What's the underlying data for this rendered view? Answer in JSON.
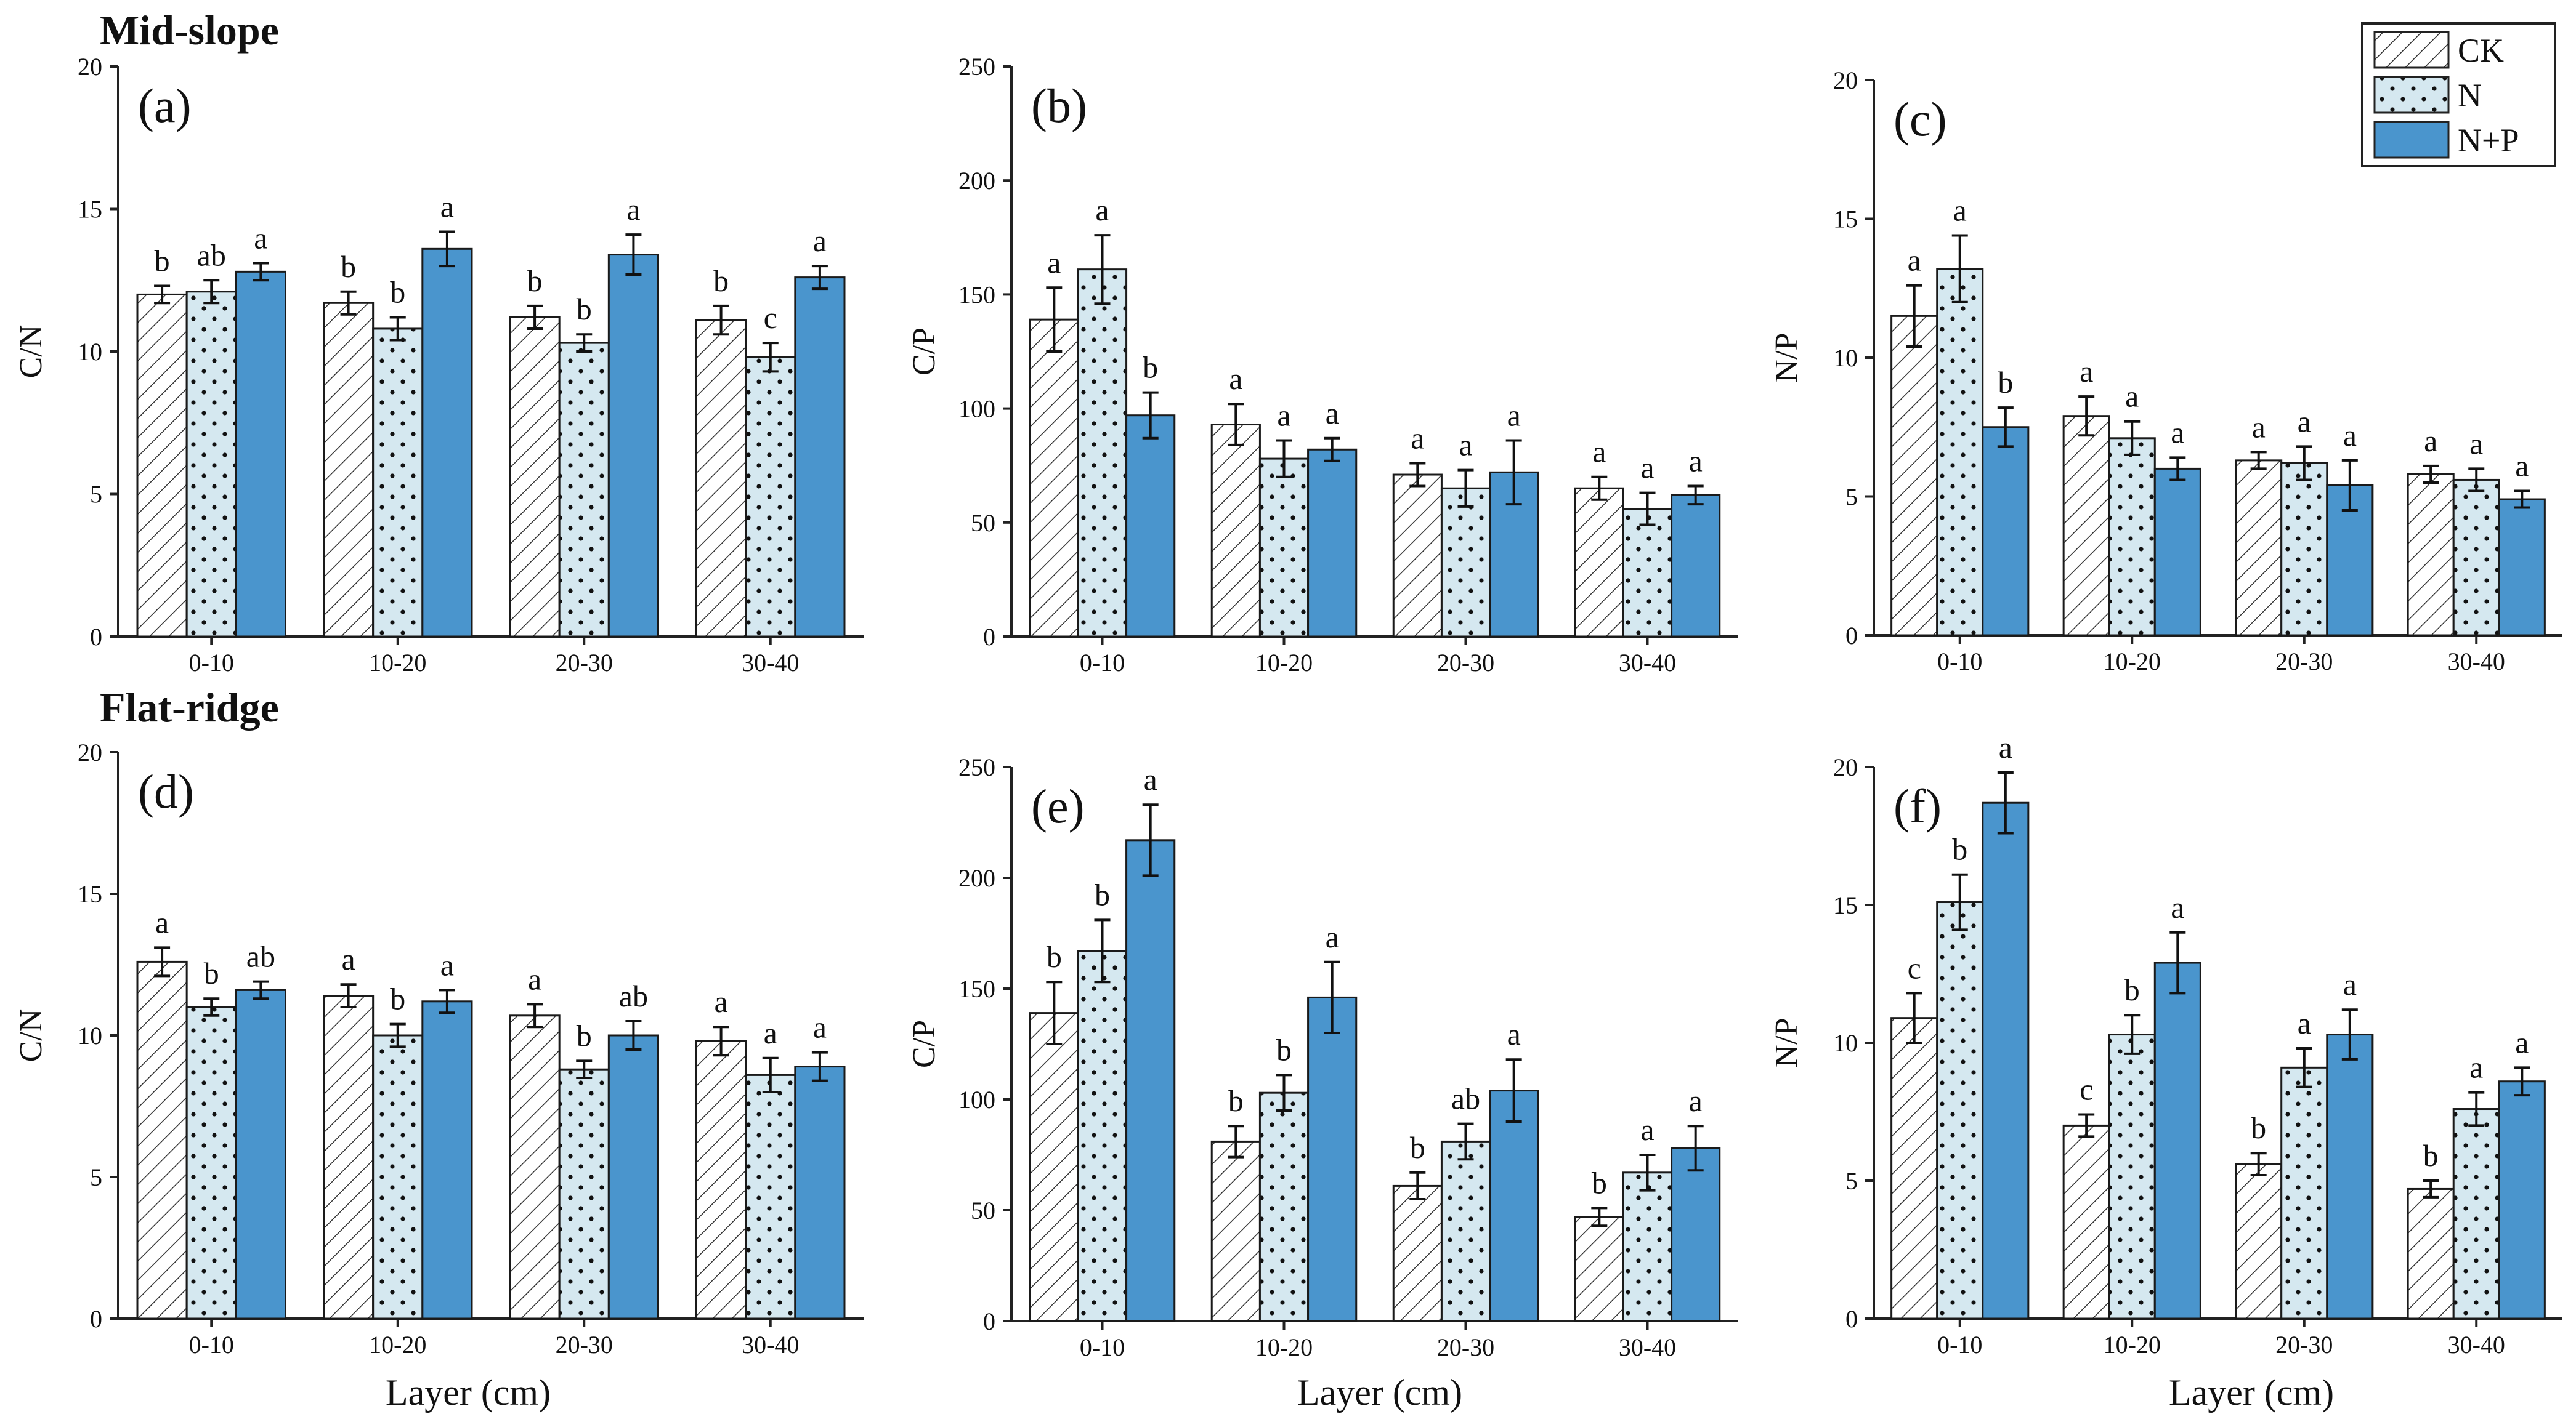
{
  "figure": {
    "row_titles": [
      "Mid-slope",
      "Flat-ridge"
    ],
    "xlabel": "Layer (cm)",
    "legend": [
      "CK",
      "N",
      "N+P"
    ]
  },
  "colors": {
    "CK": "#ffffff",
    "N": "#d5e8f0",
    "NP": "#4a95cd",
    "axis": "#222222"
  },
  "chart_data": [
    {
      "panel": "(a)",
      "type": "bar",
      "row": "Mid-slope",
      "ylabel": "C/N",
      "ylim": [
        0,
        20
      ],
      "yticks": [
        0,
        5,
        10,
        15,
        20
      ],
      "categories": [
        "0-10",
        "10-20",
        "20-30",
        "30-40"
      ],
      "series": [
        {
          "name": "CK",
          "values": [
            12.0,
            11.7,
            11.2,
            11.1
          ],
          "errors": [
            0.3,
            0.4,
            0.4,
            0.5
          ],
          "letters": [
            "b",
            "b",
            "b",
            "b"
          ]
        },
        {
          "name": "N",
          "values": [
            12.1,
            10.8,
            10.3,
            9.8
          ],
          "errors": [
            0.4,
            0.4,
            0.3,
            0.5
          ],
          "letters": [
            "ab",
            "b",
            "b",
            "c"
          ]
        },
        {
          "name": "N+P",
          "values": [
            12.8,
            13.6,
            13.4,
            12.6
          ],
          "errors": [
            0.3,
            0.6,
            0.7,
            0.4
          ],
          "letters": [
            "a",
            "a",
            "a",
            "a"
          ]
        }
      ]
    },
    {
      "panel": "(b)",
      "type": "bar",
      "row": "Mid-slope",
      "ylabel": "C/P",
      "ylim": [
        0,
        250
      ],
      "yticks": [
        0,
        50,
        100,
        150,
        200,
        250
      ],
      "categories": [
        "0-10",
        "10-20",
        "20-30",
        "30-40"
      ],
      "series": [
        {
          "name": "CK",
          "values": [
            139,
            93,
            71,
            65
          ],
          "errors": [
            14,
            9,
            5,
            5
          ],
          "letters": [
            "a",
            "a",
            "a",
            "a"
          ]
        },
        {
          "name": "N",
          "values": [
            161,
            78,
            65,
            56
          ],
          "errors": [
            15,
            8,
            8,
            7
          ],
          "letters": [
            "a",
            "a",
            "a",
            "a"
          ]
        },
        {
          "name": "N+P",
          "values": [
            97,
            82,
            72,
            62
          ],
          "errors": [
            10,
            5,
            14,
            4
          ],
          "letters": [
            "b",
            "a",
            "a",
            "a"
          ]
        }
      ]
    },
    {
      "panel": "(c)",
      "type": "bar",
      "row": "Mid-slope",
      "ylabel": "N/P",
      "ylim": [
        0,
        20
      ],
      "yticks": [
        0,
        5,
        10,
        15,
        20
      ],
      "categories": [
        "0-10",
        "10-20",
        "20-30",
        "30-40"
      ],
      "series": [
        {
          "name": "CK",
          "values": [
            11.5,
            7.9,
            6.3,
            5.8
          ],
          "errors": [
            1.1,
            0.7,
            0.3,
            0.3
          ],
          "letters": [
            "a",
            "a",
            "a",
            "a"
          ]
        },
        {
          "name": "N",
          "values": [
            13.2,
            7.1,
            6.2,
            5.6
          ],
          "errors": [
            1.2,
            0.6,
            0.6,
            0.4
          ],
          "letters": [
            "a",
            "a",
            "a",
            "a"
          ]
        },
        {
          "name": "N+P",
          "values": [
            7.5,
            6.0,
            5.4,
            4.9
          ],
          "errors": [
            0.7,
            0.4,
            0.9,
            0.3
          ],
          "letters": [
            "b",
            "a",
            "a",
            "a"
          ]
        }
      ]
    },
    {
      "panel": "(d)",
      "type": "bar",
      "row": "Flat-ridge",
      "ylabel": "C/N",
      "ylim": [
        0,
        20
      ],
      "yticks": [
        0,
        5,
        10,
        15,
        20
      ],
      "categories": [
        "0-10",
        "10-20",
        "20-30",
        "30-40"
      ],
      "series": [
        {
          "name": "CK",
          "values": [
            12.6,
            11.4,
            10.7,
            9.8
          ],
          "errors": [
            0.5,
            0.4,
            0.4,
            0.5
          ],
          "letters": [
            "a",
            "a",
            "a",
            "a"
          ]
        },
        {
          "name": "N",
          "values": [
            11.0,
            10.0,
            8.8,
            8.6
          ],
          "errors": [
            0.3,
            0.4,
            0.3,
            0.6
          ],
          "letters": [
            "b",
            "b",
            "b",
            "a"
          ]
        },
        {
          "name": "N+P",
          "values": [
            11.6,
            11.2,
            10.0,
            8.9
          ],
          "errors": [
            0.3,
            0.4,
            0.5,
            0.5
          ],
          "letters": [
            "ab",
            "a",
            "ab",
            "a"
          ]
        }
      ]
    },
    {
      "panel": "(e)",
      "type": "bar",
      "row": "Flat-ridge",
      "ylabel": "C/P",
      "ylim": [
        0,
        250
      ],
      "yticks": [
        0,
        50,
        100,
        150,
        200,
        250
      ],
      "categories": [
        "0-10",
        "10-20",
        "20-30",
        "30-40"
      ],
      "series": [
        {
          "name": "CK",
          "values": [
            139,
            81,
            61,
            47
          ],
          "errors": [
            14,
            7,
            6,
            4
          ],
          "letters": [
            "b",
            "b",
            "b",
            "b"
          ]
        },
        {
          "name": "N",
          "values": [
            167,
            103,
            81,
            67
          ],
          "errors": [
            14,
            8,
            8,
            8
          ],
          "letters": [
            "b",
            "b",
            "ab",
            "a"
          ]
        },
        {
          "name": "N+P",
          "values": [
            217,
            146,
            104,
            78
          ],
          "errors": [
            16,
            16,
            14,
            10
          ],
          "letters": [
            "a",
            "a",
            "a",
            "a"
          ]
        }
      ]
    },
    {
      "panel": "(f)",
      "type": "bar",
      "row": "Flat-ridge",
      "ylabel": "N/P",
      "ylim": [
        0,
        20
      ],
      "yticks": [
        0,
        5,
        10,
        15,
        20
      ],
      "categories": [
        "0-10",
        "10-20",
        "20-30",
        "30-40"
      ],
      "series": [
        {
          "name": "CK",
          "values": [
            10.9,
            7.0,
            5.6,
            4.7
          ],
          "errors": [
            0.9,
            0.4,
            0.4,
            0.3
          ],
          "letters": [
            "c",
            "c",
            "b",
            "b"
          ]
        },
        {
          "name": "N",
          "values": [
            15.1,
            10.3,
            9.1,
            7.6
          ],
          "errors": [
            1.0,
            0.7,
            0.7,
            0.6
          ],
          "letters": [
            "b",
            "b",
            "a",
            "a"
          ]
        },
        {
          "name": "N+P",
          "values": [
            18.7,
            12.9,
            10.3,
            8.6
          ],
          "errors": [
            1.1,
            1.1,
            0.9,
            0.5
          ],
          "letters": [
            "a",
            "a",
            "a",
            "a"
          ]
        }
      ]
    }
  ]
}
